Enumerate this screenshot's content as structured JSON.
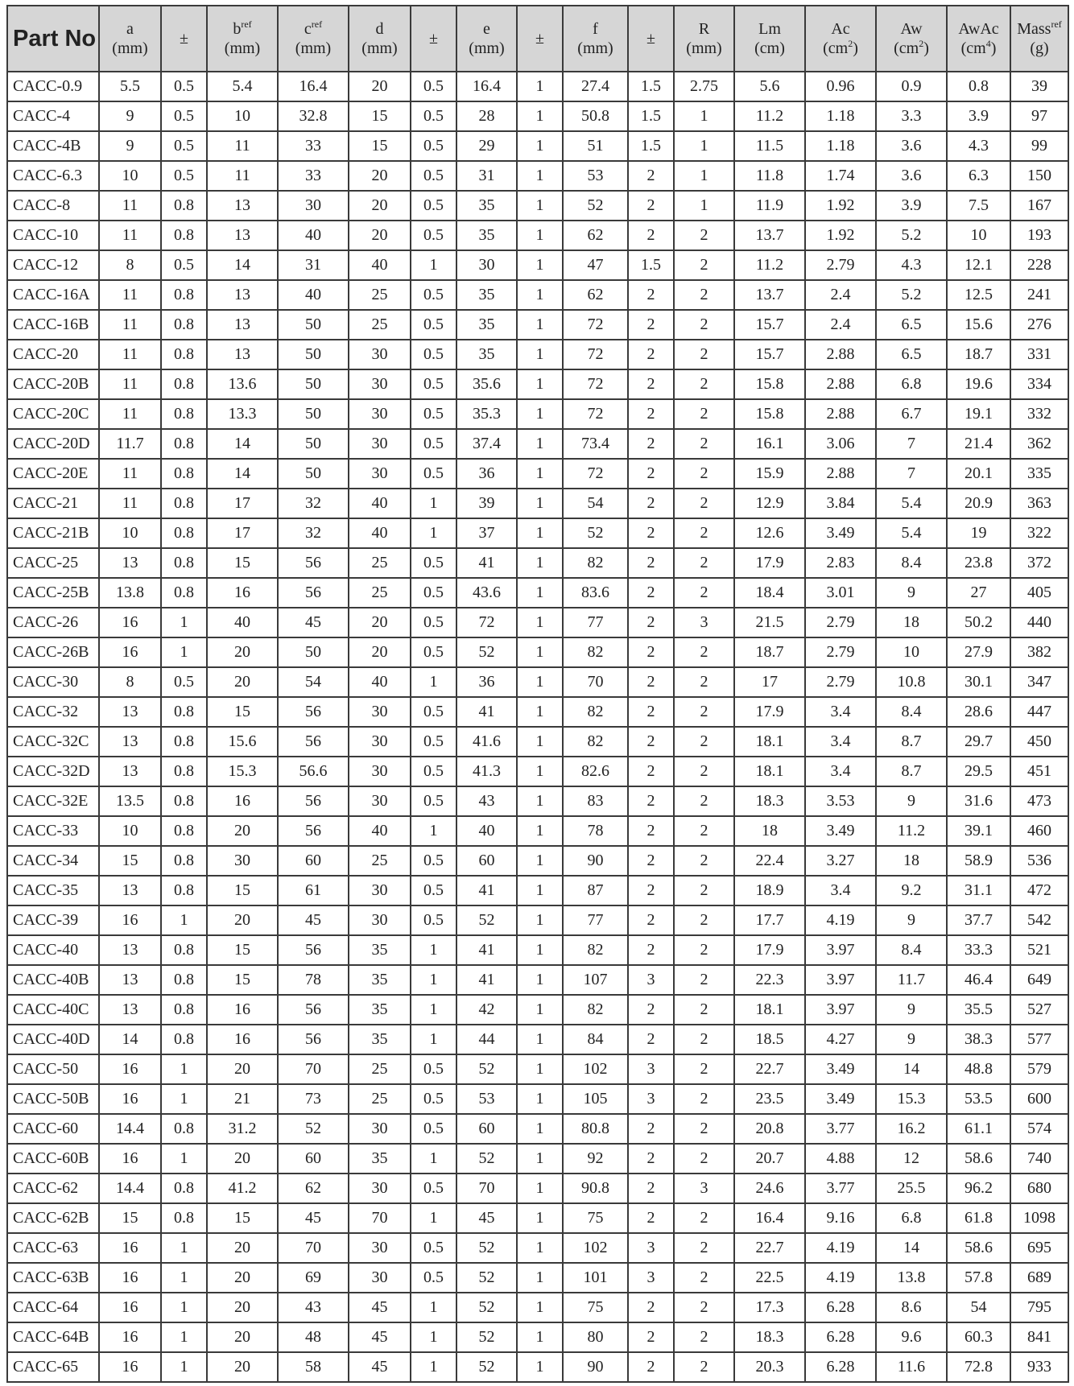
{
  "table": {
    "header": [
      {
        "name": [
          {
            "text": "Part No"
          }
        ]
      },
      {
        "name": [
          {
            "text": "a"
          }
        ],
        "unit": [
          {
            "text": "(mm)"
          }
        ]
      },
      {
        "name": [
          {
            "text": "±"
          }
        ]
      },
      {
        "name": [
          {
            "text": "b"
          },
          {
            "text": "ref",
            "sup": true
          }
        ],
        "unit": [
          {
            "text": "(mm)"
          }
        ]
      },
      {
        "name": [
          {
            "text": "c"
          },
          {
            "text": "ref",
            "sup": true
          }
        ],
        "unit": [
          {
            "text": "(mm)"
          }
        ]
      },
      {
        "name": [
          {
            "text": "d"
          }
        ],
        "unit": [
          {
            "text": "(mm)"
          }
        ]
      },
      {
        "name": [
          {
            "text": "±"
          }
        ]
      },
      {
        "name": [
          {
            "text": "e"
          }
        ],
        "unit": [
          {
            "text": "(mm)"
          }
        ]
      },
      {
        "name": [
          {
            "text": "±"
          }
        ]
      },
      {
        "name": [
          {
            "text": "f"
          }
        ],
        "unit": [
          {
            "text": "(mm)"
          }
        ]
      },
      {
        "name": [
          {
            "text": "±"
          }
        ]
      },
      {
        "name": [
          {
            "text": "R"
          }
        ],
        "unit": [
          {
            "text": "(mm)"
          }
        ]
      },
      {
        "name": [
          {
            "text": "Lm"
          }
        ],
        "unit": [
          {
            "text": "(cm)"
          }
        ]
      },
      {
        "name": [
          {
            "text": "Ac"
          }
        ],
        "unit": [
          {
            "text": "(cm"
          },
          {
            "text": "2",
            "sup": true
          },
          {
            "text": ")"
          }
        ]
      },
      {
        "name": [
          {
            "text": "Aw"
          }
        ],
        "unit": [
          {
            "text": "(cm"
          },
          {
            "text": "2",
            "sup": true
          },
          {
            "text": ")"
          }
        ]
      },
      {
        "name": [
          {
            "text": "AwAc"
          }
        ],
        "unit": [
          {
            "text": "(cm"
          },
          {
            "text": "4",
            "sup": true
          },
          {
            "text": ")"
          }
        ]
      },
      {
        "name": [
          {
            "text": "Mass"
          },
          {
            "text": "ref",
            "sup": true
          }
        ],
        "unit": [
          {
            "text": "(g)"
          }
        ]
      }
    ],
    "rows": [
      [
        "CACC-0.9",
        5.5,
        0.5,
        5.4,
        16.4,
        20,
        0.5,
        16.4,
        1,
        27.4,
        1.5,
        2.75,
        5.6,
        0.96,
        0.9,
        0.8,
        39
      ],
      [
        "CACC-4",
        9,
        0.5,
        10,
        32.8,
        15,
        0.5,
        28,
        1,
        50.8,
        1.5,
        1,
        11.2,
        1.18,
        3.3,
        3.9,
        97
      ],
      [
        "CACC-4B",
        9,
        0.5,
        11,
        33,
        15,
        0.5,
        29,
        1,
        51,
        1.5,
        1,
        11.5,
        1.18,
        3.6,
        4.3,
        99
      ],
      [
        "CACC-6.3",
        10,
        0.5,
        11,
        33,
        20,
        0.5,
        31,
        1,
        53,
        2,
        1,
        11.8,
        1.74,
        3.6,
        6.3,
        150
      ],
      [
        "CACC-8",
        11,
        0.8,
        13,
        30,
        20,
        0.5,
        35,
        1,
        52,
        2,
        1,
        11.9,
        1.92,
        3.9,
        7.5,
        167
      ],
      [
        "CACC-10",
        11,
        0.8,
        13,
        40,
        20,
        0.5,
        35,
        1,
        62,
        2,
        2,
        13.7,
        1.92,
        5.2,
        10,
        193
      ],
      [
        "CACC-12",
        8,
        0.5,
        14,
        31,
        40,
        1,
        30,
        1,
        47,
        1.5,
        2,
        11.2,
        2.79,
        4.3,
        12.1,
        228
      ],
      [
        "CACC-16A",
        11,
        0.8,
        13,
        40,
        25,
        0.5,
        35,
        1,
        62,
        2,
        2,
        13.7,
        2.4,
        5.2,
        12.5,
        241
      ],
      [
        "CACC-16B",
        11,
        0.8,
        13,
        50,
        25,
        0.5,
        35,
        1,
        72,
        2,
        2,
        15.7,
        2.4,
        6.5,
        15.6,
        276
      ],
      [
        "CACC-20",
        11,
        0.8,
        13,
        50,
        30,
        0.5,
        35,
        1,
        72,
        2,
        2,
        15.7,
        2.88,
        6.5,
        18.7,
        331
      ],
      [
        "CACC-20B",
        11,
        0.8,
        13.6,
        50,
        30,
        0.5,
        35.6,
        1,
        72,
        2,
        2,
        15.8,
        2.88,
        6.8,
        19.6,
        334
      ],
      [
        "CACC-20C",
        11,
        0.8,
        13.3,
        50,
        30,
        0.5,
        35.3,
        1,
        72,
        2,
        2,
        15.8,
        2.88,
        6.7,
        19.1,
        332
      ],
      [
        "CACC-20D",
        11.7,
        0.8,
        14,
        50,
        30,
        0.5,
        37.4,
        1,
        73.4,
        2,
        2,
        16.1,
        3.06,
        7,
        21.4,
        362
      ],
      [
        "CACC-20E",
        11,
        0.8,
        14,
        50,
        30,
        0.5,
        36,
        1,
        72,
        2,
        2,
        15.9,
        2.88,
        7,
        20.1,
        335
      ],
      [
        "CACC-21",
        11,
        0.8,
        17,
        32,
        40,
        1,
        39,
        1,
        54,
        2,
        2,
        12.9,
        3.84,
        5.4,
        20.9,
        363
      ],
      [
        "CACC-21B",
        10,
        0.8,
        17,
        32,
        40,
        1,
        37,
        1,
        52,
        2,
        2,
        12.6,
        3.49,
        5.4,
        19,
        322
      ],
      [
        "CACC-25",
        13,
        0.8,
        15,
        56,
        25,
        0.5,
        41,
        1,
        82,
        2,
        2,
        17.9,
        2.83,
        8.4,
        23.8,
        372
      ],
      [
        "CACC-25B",
        13.8,
        0.8,
        16,
        56,
        25,
        0.5,
        43.6,
        1,
        83.6,
        2,
        2,
        18.4,
        3.01,
        9,
        27,
        405
      ],
      [
        "CACC-26",
        16,
        1,
        40,
        45,
        20,
        0.5,
        72,
        1,
        77,
        2,
        3,
        21.5,
        2.79,
        18,
        50.2,
        440
      ],
      [
        "CACC-26B",
        16,
        1,
        20,
        50,
        20,
        0.5,
        52,
        1,
        82,
        2,
        2,
        18.7,
        2.79,
        10,
        27.9,
        382
      ],
      [
        "CACC-30",
        8,
        0.5,
        20,
        54,
        40,
        1,
        36,
        1,
        70,
        2,
        2,
        17,
        2.79,
        10.8,
        30.1,
        347
      ],
      [
        "CACC-32",
        13,
        0.8,
        15,
        56,
        30,
        0.5,
        41,
        1,
        82,
        2,
        2,
        17.9,
        3.4,
        8.4,
        28.6,
        447
      ],
      [
        "CACC-32C",
        13,
        0.8,
        15.6,
        56,
        30,
        0.5,
        41.6,
        1,
        82,
        2,
        2,
        18.1,
        3.4,
        8.7,
        29.7,
        450
      ],
      [
        "CACC-32D",
        13,
        0.8,
        15.3,
        56.6,
        30,
        0.5,
        41.3,
        1,
        82.6,
        2,
        2,
        18.1,
        3.4,
        8.7,
        29.5,
        451
      ],
      [
        "CACC-32E",
        13.5,
        0.8,
        16,
        56,
        30,
        0.5,
        43,
        1,
        83,
        2,
        2,
        18.3,
        3.53,
        9,
        31.6,
        473
      ],
      [
        "CACC-33",
        10,
        0.8,
        20,
        56,
        40,
        1,
        40,
        1,
        78,
        2,
        2,
        18,
        3.49,
        11.2,
        39.1,
        460
      ],
      [
        "CACC-34",
        15,
        0.8,
        30,
        60,
        25,
        0.5,
        60,
        1,
        90,
        2,
        2,
        22.4,
        3.27,
        18,
        58.9,
        536
      ],
      [
        "CACC-35",
        13,
        0.8,
        15,
        61,
        30,
        0.5,
        41,
        1,
        87,
        2,
        2,
        18.9,
        3.4,
        9.2,
        31.1,
        472
      ],
      [
        "CACC-39",
        16,
        1,
        20,
        45,
        30,
        0.5,
        52,
        1,
        77,
        2,
        2,
        17.7,
        4.19,
        9,
        37.7,
        542
      ],
      [
        "CACC-40",
        13,
        0.8,
        15,
        56,
        35,
        1,
        41,
        1,
        82,
        2,
        2,
        17.9,
        3.97,
        8.4,
        33.3,
        521
      ],
      [
        "CACC-40B",
        13,
        0.8,
        15,
        78,
        35,
        1,
        41,
        1,
        107,
        3,
        2,
        22.3,
        3.97,
        11.7,
        46.4,
        649
      ],
      [
        "CACC-40C",
        13,
        0.8,
        16,
        56,
        35,
        1,
        42,
        1,
        82,
        2,
        2,
        18.1,
        3.97,
        9,
        35.5,
        527
      ],
      [
        "CACC-40D",
        14,
        0.8,
        16,
        56,
        35,
        1,
        44,
        1,
        84,
        2,
        2,
        18.5,
        4.27,
        9,
        38.3,
        577
      ],
      [
        "CACC-50",
        16,
        1,
        20,
        70,
        25,
        0.5,
        52,
        1,
        102,
        3,
        2,
        22.7,
        3.49,
        14,
        48.8,
        579
      ],
      [
        "CACC-50B",
        16,
        1,
        21,
        73,
        25,
        0.5,
        53,
        1,
        105,
        3,
        2,
        23.5,
        3.49,
        15.3,
        53.5,
        600
      ],
      [
        "CACC-60",
        14.4,
        0.8,
        31.2,
        52,
        30,
        0.5,
        60,
        1,
        80.8,
        2,
        2,
        20.8,
        3.77,
        16.2,
        61.1,
        574
      ],
      [
        "CACC-60B",
        16,
        1,
        20,
        60,
        35,
        1,
        52,
        1,
        92,
        2,
        2,
        20.7,
        4.88,
        12,
        58.6,
        740
      ],
      [
        "CACC-62",
        14.4,
        0.8,
        41.2,
        62,
        30,
        0.5,
        70,
        1,
        90.8,
        2,
        3,
        24.6,
        3.77,
        25.5,
        96.2,
        680
      ],
      [
        "CACC-62B",
        15,
        0.8,
        15,
        45,
        70,
        1,
        45,
        1,
        75,
        2,
        2,
        16.4,
        9.16,
        6.8,
        61.8,
        1098
      ],
      [
        "CACC-63",
        16,
        1,
        20,
        70,
        30,
        0.5,
        52,
        1,
        102,
        3,
        2,
        22.7,
        4.19,
        14,
        58.6,
        695
      ],
      [
        "CACC-63B",
        16,
        1,
        20,
        69,
        30,
        0.5,
        52,
        1,
        101,
        3,
        2,
        22.5,
        4.19,
        13.8,
        57.8,
        689
      ],
      [
        "CACC-64",
        16,
        1,
        20,
        43,
        45,
        1,
        52,
        1,
        75,
        2,
        2,
        17.3,
        6.28,
        8.6,
        54,
        795
      ],
      [
        "CACC-64B",
        16,
        1,
        20,
        48,
        45,
        1,
        52,
        1,
        80,
        2,
        2,
        18.3,
        6.28,
        9.6,
        60.3,
        841
      ],
      [
        "CACC-65",
        16,
        1,
        20,
        58,
        45,
        1,
        52,
        1,
        90,
        2,
        2,
        20.3,
        6.28,
        11.6,
        72.8,
        933
      ]
    ]
  }
}
